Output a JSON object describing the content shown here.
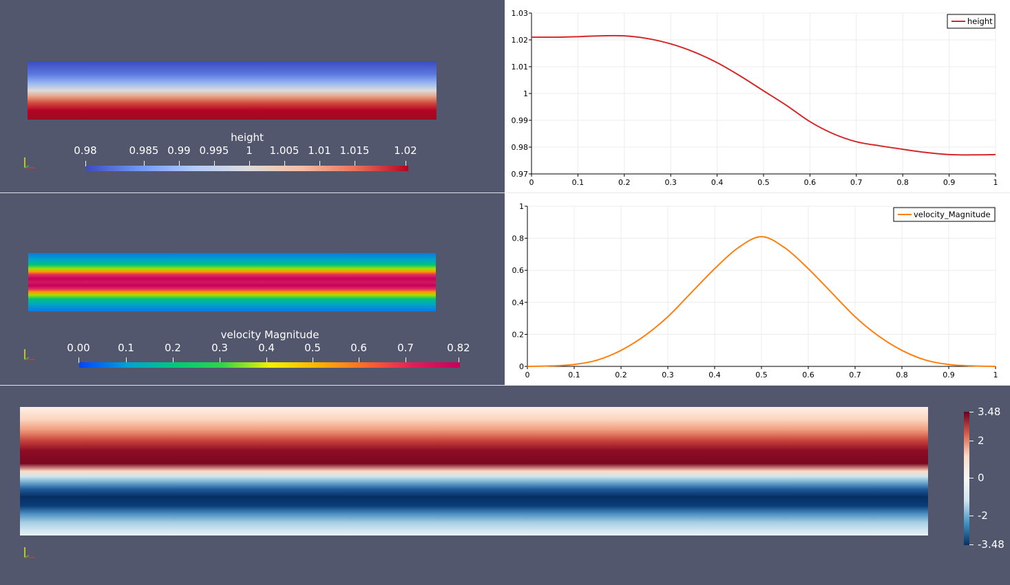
{
  "views": {
    "height_view": {
      "colorbar": {
        "title": "height",
        "ticks": [
          "0.98",
          "0.985",
          "0.99",
          "0.995",
          "1",
          "1.005",
          "1.01",
          "1.015",
          "1.02"
        ],
        "colors": [
          "#3b4cc0",
          "#7396f5",
          "#b0cbfc",
          "#dddcdc",
          "#f6bfa6",
          "#e7745b",
          "#b40426"
        ]
      }
    },
    "velocity_view": {
      "colorbar": {
        "title": "velocity Magnitude",
        "ticks": [
          "0.00",
          "0.1",
          "0.2",
          "0.3",
          "0.4",
          "0.5",
          "0.6",
          "0.7",
          "0.82"
        ],
        "colors": [
          "#0044ff",
          "#00a0d8",
          "#00c87a",
          "#2fd34a",
          "#f2f200",
          "#ffb400",
          "#ff6a2a",
          "#e41d5a",
          "#c8005a"
        ]
      }
    },
    "vorticity_view": {
      "colorbar": {
        "ticks": [
          "3.48",
          "2",
          "0",
          "-2",
          "-3.48"
        ],
        "colors": [
          "#67001f",
          "#d6604d",
          "#fddbc7",
          "#f7f7f7",
          "#d1e5f0",
          "#4393c3",
          "#053061"
        ]
      }
    }
  },
  "chart_data": [
    {
      "type": "line",
      "title": "",
      "xlabel": "",
      "ylabel": "",
      "xlim": [
        0,
        1
      ],
      "ylim": [
        0.97,
        1.03
      ],
      "xticks": [
        "0",
        "0.1",
        "0.2",
        "0.3",
        "0.4",
        "0.5",
        "0.6",
        "0.7",
        "0.8",
        "0.9",
        "1"
      ],
      "yticks": [
        "0.97",
        "0.98",
        "0.99",
        "1",
        "1.01",
        "1.02",
        "1.03"
      ],
      "grid": true,
      "legend": "top-right",
      "series": [
        {
          "name": "height",
          "color": "#d62728",
          "x": [
            0,
            0.05,
            0.1,
            0.15,
            0.2,
            0.25,
            0.3,
            0.35,
            0.4,
            0.45,
            0.5,
            0.55,
            0.6,
            0.65,
            0.7,
            0.75,
            0.8,
            0.85,
            0.9,
            0.95,
            1
          ],
          "y": [
            1.021,
            1.021,
            1.0212,
            1.0215,
            1.0215,
            1.0205,
            1.0185,
            1.0155,
            1.0115,
            1.0065,
            1.001,
            0.9955,
            0.9895,
            0.985,
            0.982,
            0.9805,
            0.9792,
            0.978,
            0.9772,
            0.9771,
            0.9772
          ]
        }
      ]
    },
    {
      "type": "line",
      "title": "",
      "xlabel": "",
      "ylabel": "",
      "xlim": [
        0,
        1
      ],
      "ylim": [
        0,
        1
      ],
      "xticks": [
        "0",
        "0.1",
        "0.2",
        "0.3",
        "0.4",
        "0.5",
        "0.6",
        "0.7",
        "0.8",
        "0.9",
        "1"
      ],
      "yticks": [
        "0",
        "0.2",
        "0.4",
        "0.6",
        "0.8",
        "1"
      ],
      "grid": true,
      "legend": "top-right",
      "series": [
        {
          "name": "velocity_Magnitude",
          "color": "#ff7f0e",
          "x": [
            0,
            0.05,
            0.1,
            0.15,
            0.2,
            0.25,
            0.3,
            0.35,
            0.4,
            0.45,
            0.5,
            0.55,
            0.6,
            0.65,
            0.7,
            0.75,
            0.8,
            0.85,
            0.9,
            0.95,
            1
          ],
          "y": [
            0.0,
            0.003,
            0.012,
            0.04,
            0.1,
            0.19,
            0.31,
            0.46,
            0.61,
            0.74,
            0.81,
            0.74,
            0.61,
            0.46,
            0.31,
            0.19,
            0.1,
            0.04,
            0.012,
            0.003,
            0.0
          ]
        }
      ]
    }
  ]
}
